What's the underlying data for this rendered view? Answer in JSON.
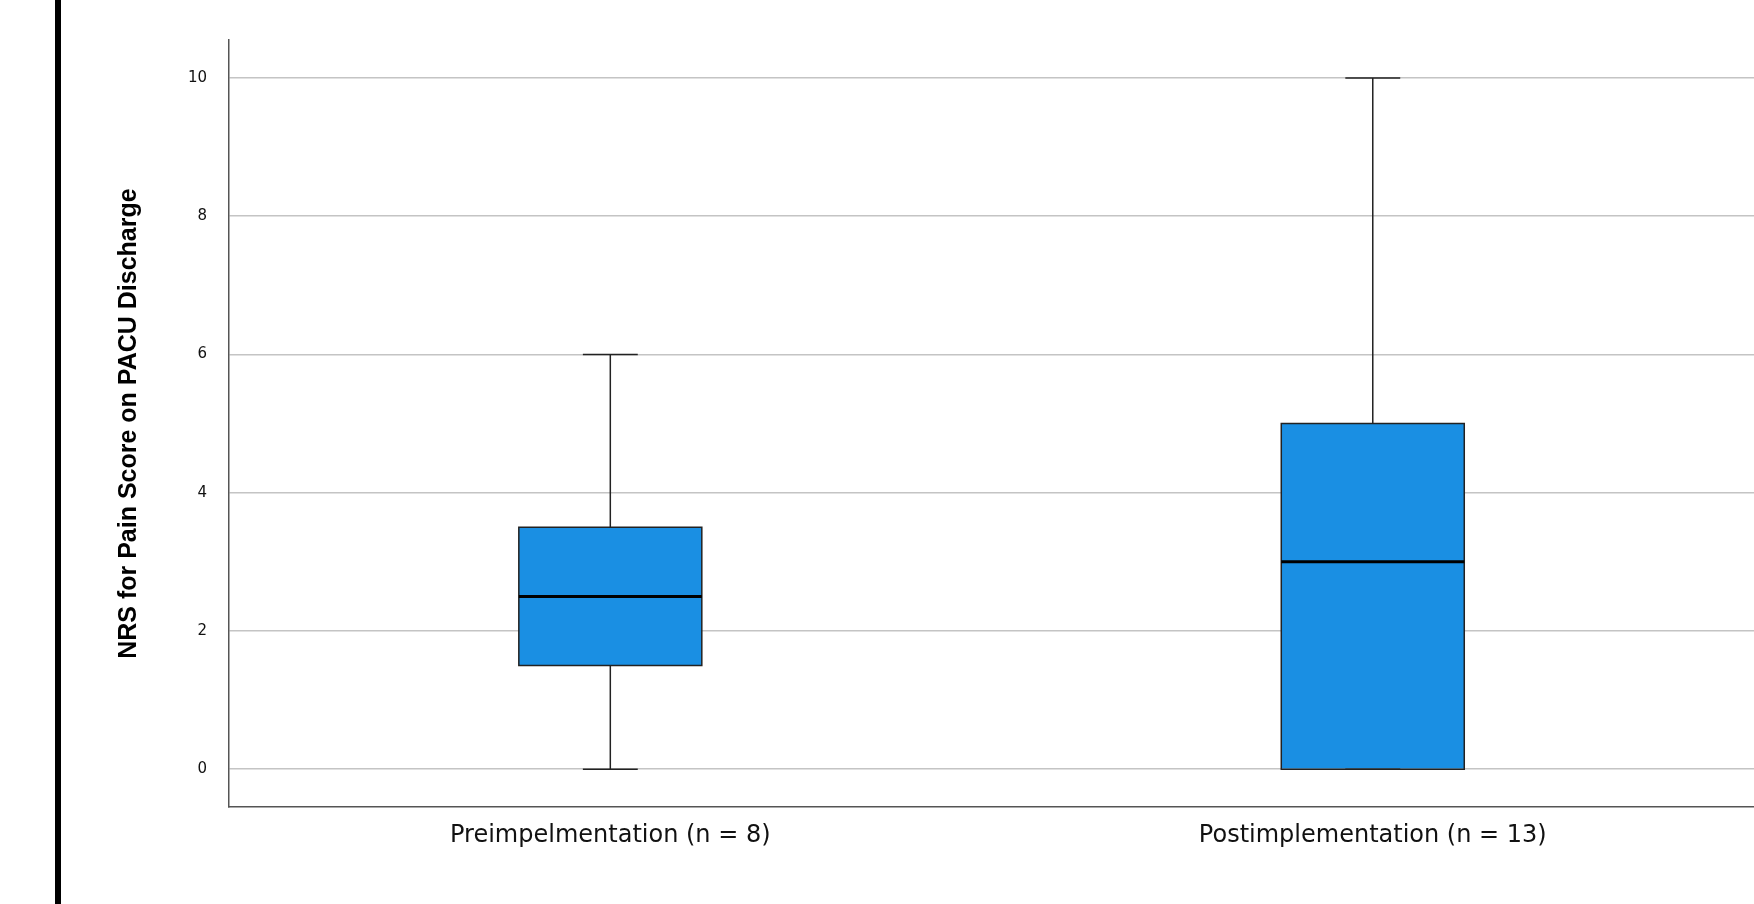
{
  "chart_data": {
    "type": "box",
    "ylabel": "NRS for Pain Score on PACU Discharge",
    "categories": [
      "Preimpelmentation (n = 8)",
      "Postimplementation (n = 13)"
    ],
    "boxes": [
      {
        "low": 0,
        "q1": 1.5,
        "median": 2.5,
        "q3": 3.5,
        "high": 6
      },
      {
        "low": 0,
        "q1": 0,
        "median": 3,
        "q3": 5,
        "high": 10
      }
    ],
    "color": "#1a8fe3",
    "ylim": [
      -0.55,
      10.55
    ],
    "yticks": [
      0,
      2,
      4,
      6,
      8,
      10
    ],
    "grid": "y",
    "legend": false
  }
}
